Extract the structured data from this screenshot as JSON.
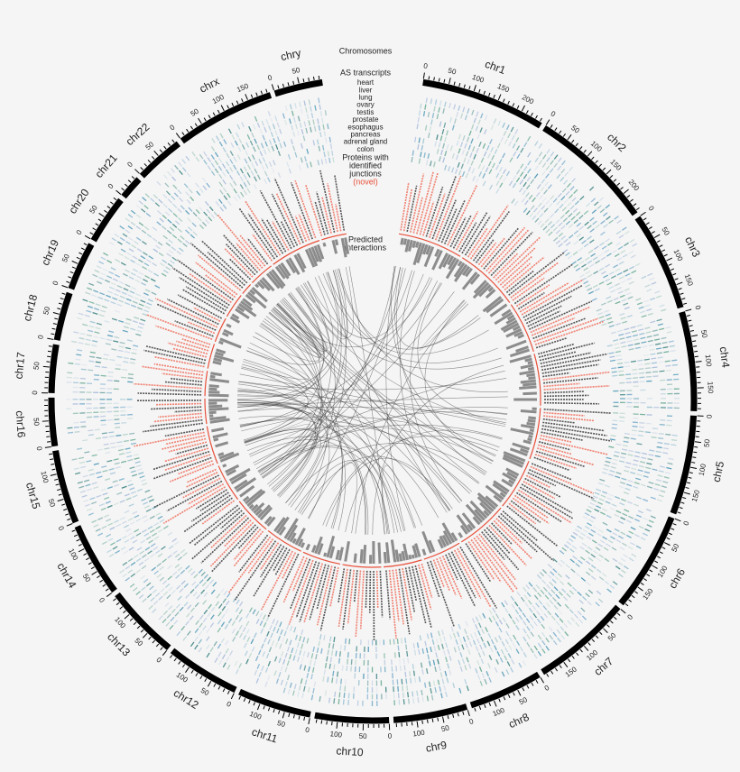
{
  "legend": {
    "chromosomes": "Chromosomes",
    "as_transcripts": "AS transcripts",
    "tissues": [
      "heart",
      "liver",
      "lung",
      "ovary",
      "testis",
      "prostate",
      "esophagus",
      "pancreas",
      "adrenal gland",
      "colon"
    ],
    "proteins": [
      "Proteins with",
      "identified",
      "junctions"
    ],
    "novel": "(novel)",
    "interactions": [
      "Predicted",
      "interactions"
    ]
  },
  "chromosomes": [
    {
      "name": "chr1",
      "ticks": [
        0,
        50,
        100,
        150,
        200
      ]
    },
    {
      "name": "chr2",
      "ticks": [
        0,
        50,
        100,
        150,
        200
      ]
    },
    {
      "name": "chr3",
      "ticks": [
        0,
        50,
        100,
        150
      ]
    },
    {
      "name": "chr4",
      "ticks": [
        0,
        50,
        100,
        150
      ]
    },
    {
      "name": "chr5",
      "ticks": [
        0,
        50,
        100,
        150
      ]
    },
    {
      "name": "chr6",
      "ticks": [
        0,
        50,
        100,
        150
      ]
    },
    {
      "name": "chr7",
      "ticks": [
        0,
        50,
        100,
        150
      ]
    },
    {
      "name": "chr8",
      "ticks": [
        0,
        50,
        100
      ]
    },
    {
      "name": "chr9",
      "ticks": [
        0,
        50,
        100
      ]
    },
    {
      "name": "chr10",
      "ticks": [
        0,
        50,
        100
      ]
    },
    {
      "name": "chr11",
      "ticks": [
        0,
        50,
        100
      ]
    },
    {
      "name": "chr12",
      "ticks": [
        0,
        50,
        100
      ]
    },
    {
      "name": "chr13",
      "ticks": [
        0,
        50,
        100
      ]
    },
    {
      "name": "chr14",
      "ticks": [
        0,
        50,
        100
      ]
    },
    {
      "name": "chr15",
      "ticks": [
        0,
        50,
        100
      ]
    },
    {
      "name": "chr16",
      "ticks": [
        0,
        50
      ]
    },
    {
      "name": "chr17",
      "ticks": [
        0,
        50
      ]
    },
    {
      "name": "chr18",
      "ticks": [
        0,
        50
      ]
    },
    {
      "name": "chr19",
      "ticks": [
        0,
        50
      ]
    },
    {
      "name": "chr20",
      "ticks": [
        0,
        50
      ]
    },
    {
      "name": "chr21",
      "ticks": [
        0
      ]
    },
    {
      "name": "chr22",
      "ticks": [
        0,
        50
      ]
    },
    {
      "name": "chrx",
      "ticks": [
        0,
        50,
        100,
        150
      ]
    },
    {
      "name": "chry",
      "ticks": [
        0,
        50
      ]
    }
  ]
}
